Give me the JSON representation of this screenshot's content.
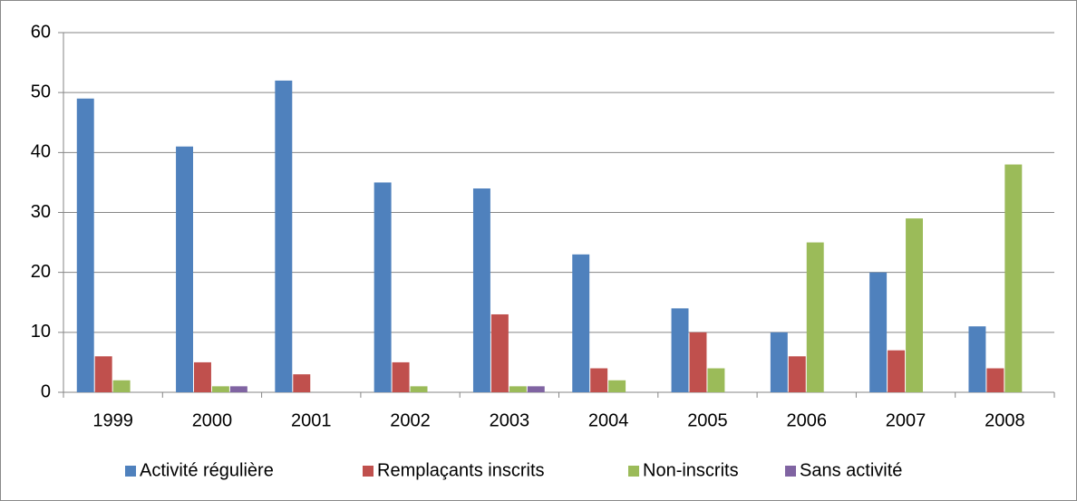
{
  "chart_data": {
    "type": "bar",
    "categories": [
      "1999",
      "2000",
      "2001",
      "2002",
      "2003",
      "2004",
      "2005",
      "2006",
      "2007",
      "2008"
    ],
    "series": [
      {
        "name": "Activité régulière",
        "color": "#4f81bd",
        "values": [
          49,
          41,
          52,
          35,
          34,
          23,
          14,
          10,
          20,
          11
        ]
      },
      {
        "name": "Remplaçants inscrits",
        "color": "#c0504d",
        "values": [
          6,
          5,
          3,
          5,
          13,
          4,
          10,
          6,
          7,
          4
        ]
      },
      {
        "name": "Non-inscrits",
        "color": "#9bbb59",
        "values": [
          2,
          1,
          0,
          1,
          1,
          2,
          4,
          25,
          29,
          38
        ]
      },
      {
        "name": "Sans activité",
        "color": "#8064a2",
        "values": [
          0,
          1,
          0,
          0,
          1,
          0,
          0,
          0,
          0,
          0
        ]
      }
    ],
    "ylim": [
      0,
      60
    ],
    "yticks": [
      0,
      10,
      20,
      30,
      40,
      50,
      60
    ],
    "grid": true,
    "legend": "bottom"
  }
}
